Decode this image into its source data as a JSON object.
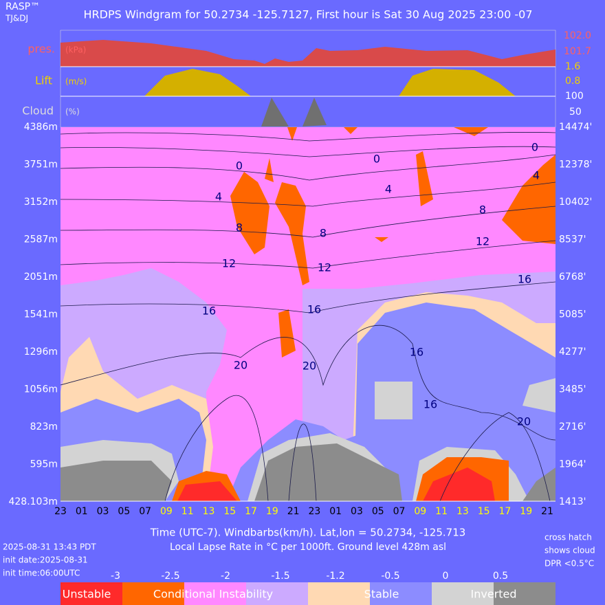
{
  "header": {
    "brand": "RASP™",
    "authors": "TJ&DJ",
    "title": "HRDPS Windgram for 50.2734 -125.7127, First hour is Sat 30 Aug 2025 23:00 -07"
  },
  "panels": {
    "pressure": {
      "label": "pres.",
      "unit": "(kPa)",
      "ticks": [
        "102.0",
        "101.7"
      ]
    },
    "lift": {
      "label": "Lift",
      "unit": "(m/s)",
      "ticks": [
        "1.6",
        "0.8"
      ]
    },
    "cloud": {
      "label": "Cloud",
      "unit": "(%)",
      "ticks": [
        "100",
        "50"
      ]
    }
  },
  "y_left": [
    "4386m",
    "3751m",
    "3152m",
    "2587m",
    "2051m",
    "1541m",
    "1296m",
    "1056m",
    "823m",
    "595m",
    "428.103m"
  ],
  "y_right": [
    "14474'",
    "12378'",
    "10402'",
    "8537'",
    "6768'",
    "5085'",
    "4277'",
    "3485'",
    "2716'",
    "1964'",
    "1413'"
  ],
  "x_hours": [
    {
      "label": "23",
      "color": "#000000"
    },
    {
      "label": "01",
      "color": "#000000"
    },
    {
      "label": "03",
      "color": "#000000"
    },
    {
      "label": "05",
      "color": "#000000"
    },
    {
      "label": "07",
      "color": "#000000"
    },
    {
      "label": "09",
      "color": "#ffff00"
    },
    {
      "label": "11",
      "color": "#ffff00"
    },
    {
      "label": "13",
      "color": "#ffff00"
    },
    {
      "label": "15",
      "color": "#ffff00"
    },
    {
      "label": "17",
      "color": "#ffff00"
    },
    {
      "label": "19",
      "color": "#ffff00"
    },
    {
      "label": "21",
      "color": "#000000"
    },
    {
      "label": "23",
      "color": "#000000"
    },
    {
      "label": "01",
      "color": "#000000"
    },
    {
      "label": "03",
      "color": "#000000"
    },
    {
      "label": "05",
      "color": "#000000"
    },
    {
      "label": "07",
      "color": "#000000"
    },
    {
      "label": "09",
      "color": "#ffff00"
    },
    {
      "label": "11",
      "color": "#ffff00"
    },
    {
      "label": "13",
      "color": "#ffff00"
    },
    {
      "label": "15",
      "color": "#ffff00"
    },
    {
      "label": "17",
      "color": "#ffff00"
    },
    {
      "label": "19",
      "color": "#ffff00"
    },
    {
      "label": "21",
      "color": "#000000"
    }
  ],
  "contour_labels": [
    "0",
    "0",
    "0",
    "4",
    "4",
    "4",
    "8",
    "8",
    "8",
    "12",
    "12",
    "12",
    "16",
    "16",
    "16",
    "16",
    "16",
    "20",
    "20",
    "20"
  ],
  "footer": {
    "axis_title": "Time (UTC-7). Windbarbs(km/h). Lat,lon = 50.2734, -125.713",
    "subtitle": "Local Lapse Rate in °C per 1000ft.   Ground level 428m asl",
    "run_time": "2025-08-31 13:43 PDT",
    "init_date": "init date:2025-08-31",
    "init_time": "init time:06:00UTC",
    "note": [
      "cross hatch",
      "shows cloud",
      "DPR <0.5°C"
    ]
  },
  "legend": {
    "values": [
      "-3",
      "-2.5",
      "-2",
      "-1.5",
      "-1.2",
      "-0.5",
      "0",
      "0.5"
    ],
    "colors": [
      "#ff2a2a",
      "#ff6600",
      "#ff88ff",
      "#ccaaff",
      "#ffd9b3",
      "#8c8cff",
      "#d3d3d3",
      "#8c8c8c"
    ],
    "labels": [
      "Unstable",
      "Conditional Instability",
      "Stable",
      "Inverted"
    ]
  }
}
